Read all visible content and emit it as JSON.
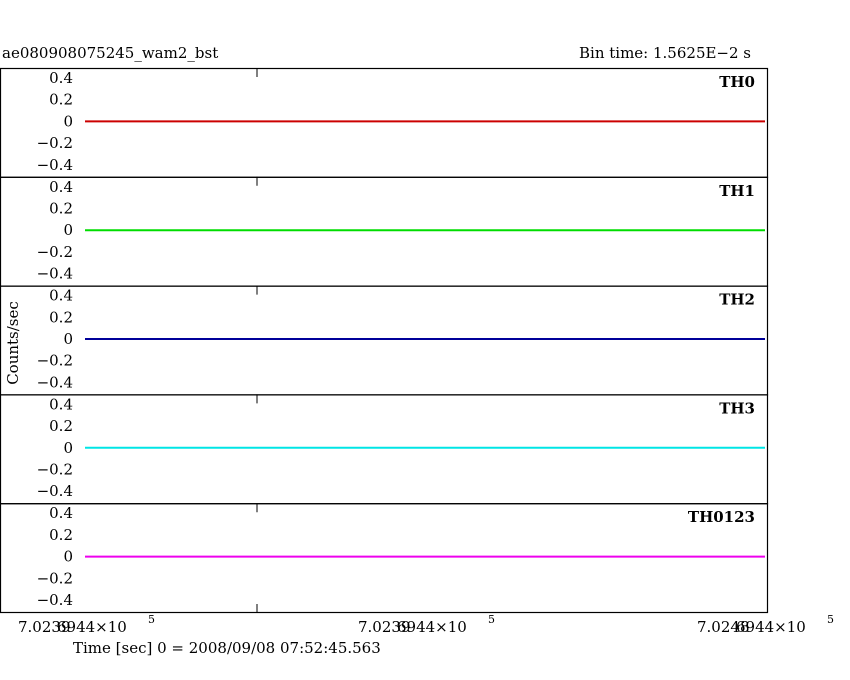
{
  "header": {
    "title": "ae080908075245_wam2_bst",
    "bin_time": "Bin time: 1.5625E−2 s"
  },
  "chart_data": {
    "type": "line",
    "x_tick_labels": [
      {
        "text": "7.0239",
        "overlay": "6944×10",
        "exp": "5"
      },
      {
        "text": "7.0239",
        "overlay": "6944×10",
        "exp": "5"
      },
      {
        "text": "7.0248",
        "overlay": "6944×10",
        "exp": "5"
      }
    ],
    "y_tick_labels": [
      "0.4",
      "0.2",
      "0",
      "−0.2",
      "−0.4"
    ],
    "ylim": [
      -0.5,
      0.5
    ],
    "ylabel": "Counts/sec",
    "xlabel": "Time [sec] 0 = 2008/09/08 07:52:45.563",
    "grid": false,
    "panels": [
      {
        "name": "TH0",
        "color": "#cc0000",
        "x": [
          0,
          1
        ],
        "values": [
          0,
          0
        ]
      },
      {
        "name": "TH1",
        "color": "#00dd00",
        "x": [
          0,
          1
        ],
        "values": [
          0,
          0
        ]
      },
      {
        "name": "TH2",
        "color": "#000099",
        "x": [
          0,
          1
        ],
        "values": [
          0,
          0
        ]
      },
      {
        "name": "TH3",
        "color": "#00e5e5",
        "x": [
          0,
          1
        ],
        "values": [
          0,
          0
        ]
      },
      {
        "name": "TH0123",
        "color": "#ee00ee",
        "x": [
          0,
          1
        ],
        "values": [
          0,
          0
        ]
      }
    ]
  }
}
